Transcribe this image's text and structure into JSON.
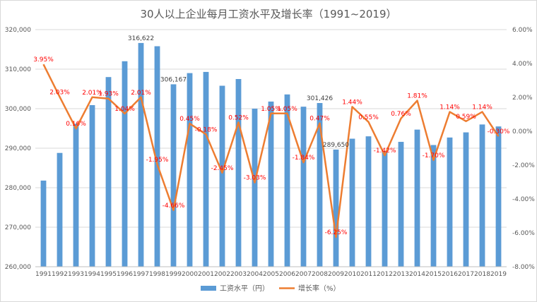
{
  "chart_data": {
    "type": "bar+line",
    "title": "30人以上企业每月工资水平及增长率（1991~2019）",
    "categories": [
      "1991",
      "1992",
      "1993",
      "1994",
      "1995",
      "1996",
      "1997",
      "1998",
      "1999",
      "2000",
      "2001",
      "2002",
      "2003",
      "2004",
      "2005",
      "2006",
      "2007",
      "2008",
      "2009",
      "2010",
      "2011",
      "2012",
      "2013",
      "2014",
      "2015",
      "2016",
      "2017",
      "2018",
      "2019"
    ],
    "series": [
      {
        "name": "工资水平（円）",
        "type": "bar",
        "axis": "left",
        "color": "#5b9bd5",
        "values": [
          281800,
          288800,
          296200,
          300900,
          308000,
          312000,
          316622,
          315800,
          306167,
          309000,
          309300,
          305800,
          307500,
          300000,
          301800,
          303600,
          300500,
          301426,
          289650,
          292400,
          293000,
          289300,
          291600,
          294700,
          290800,
          292700,
          294000,
          296000,
          295500
        ]
      },
      {
        "name": "增长率（%）",
        "type": "line",
        "axis": "right",
        "color": "#ed7d31",
        "values": [
          3.95,
          2.03,
          0.16,
          2.01,
          1.93,
          1.04,
          2.01,
          -1.95,
          -4.66,
          0.45,
          -0.18,
          -2.45,
          0.52,
          -3.03,
          1.05,
          1.05,
          -1.84,
          0.47,
          -6.25,
          1.44,
          0.55,
          -1.42,
          0.76,
          1.81,
          -1.7,
          1.14,
          0.59,
          1.14,
          -0.3
        ],
        "labels": [
          "3.95%",
          "2.03%",
          "0.16%",
          "2.01%",
          "1.93%",
          "1.04%",
          "2.01%",
          "-1.95%",
          "-4.66%",
          "0.45%",
          "-0.18%",
          "-2.45%",
          "0.52%",
          "-3.03%",
          "1.05%",
          "1.05%",
          "-1.84%",
          "0.47%",
          "-6.25%",
          "1.44%",
          "0.55%",
          "-1.42%",
          "0.76%",
          "1.81%",
          "-1.70%",
          "1.14%",
          "0.59%",
          "1.14%",
          "-0.30%"
        ]
      }
    ],
    "bar_annotations": [
      {
        "index": 6,
        "text": "316,622"
      },
      {
        "index": 8,
        "text": "306,167"
      },
      {
        "index": 17,
        "text": "301,426"
      },
      {
        "index": 18,
        "text": "289,650"
      }
    ],
    "left_axis": {
      "ylim": [
        260000,
        320000
      ],
      "ticks": [
        "260,000",
        "270,000",
        "280,000",
        "290,000",
        "300,000",
        "310,000",
        "320,000"
      ],
      "tick_values": [
        260000,
        270000,
        280000,
        290000,
        300000,
        310000,
        320000
      ]
    },
    "right_axis": {
      "ylim": [
        -8,
        6
      ],
      "ticks": [
        "-8.00%",
        "-6.00%",
        "-4.00%",
        "-2.00%",
        "0.00%",
        "2.00%",
        "4.00%",
        "6.00%"
      ],
      "tick_values": [
        -8,
        -6,
        -4,
        -2,
        0,
        2,
        4,
        6
      ]
    },
    "legend": {
      "position": "bottom",
      "entries": [
        "工资水平（円）",
        "增长率（%）"
      ]
    },
    "grid": true
  }
}
